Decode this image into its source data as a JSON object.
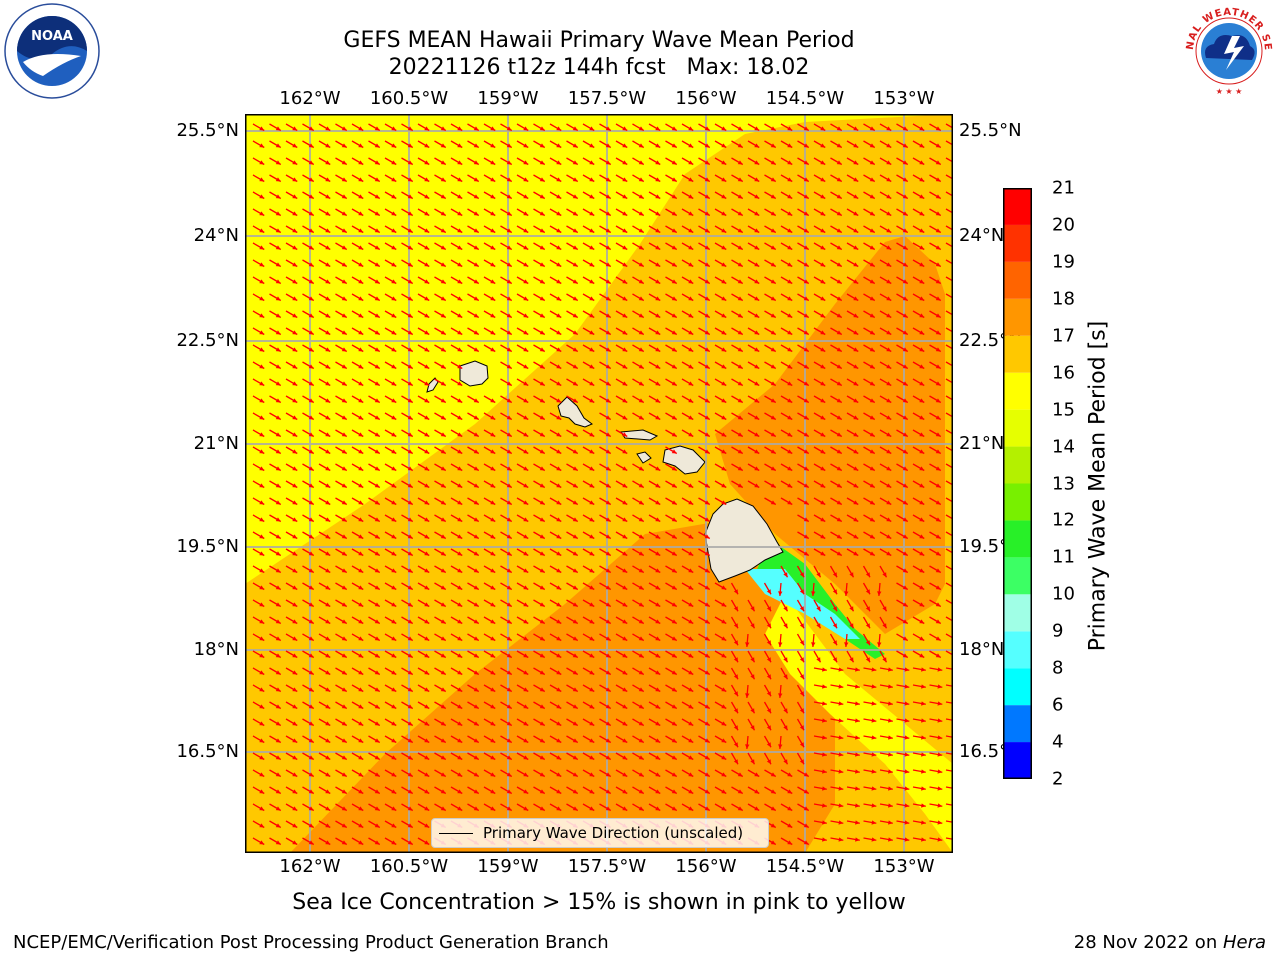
{
  "title": {
    "line1": "GEFS MEAN Hawaii Primary Wave Mean Period",
    "line2": "20221126 t12z 144h fcst   Max: 18.02"
  },
  "logos": {
    "left": "noaa-logo",
    "left_text": "NOAA",
    "left_ring_text": "NATIONAL OCEANIC AND ATMOSPHERIC ADMINISTRATION · U.S. DEPARTMENT OF COMMERCE",
    "right": "nws-logo",
    "right_ring_text": "NATIONAL WEATHER SERVICE"
  },
  "map": {
    "lon_ticks": [
      "162°W",
      "160.5°W",
      "159°W",
      "157.5°W",
      "156°W",
      "154.5°W",
      "153°W"
    ],
    "lat_ticks": [
      "25.5°N",
      "24°N",
      "22.5°N",
      "21°N",
      "19.5°N",
      "18°N",
      "16.5°N"
    ],
    "lon_range": [
      -163.0,
      -152.3
    ],
    "lat_range": [
      15.2,
      25.8
    ],
    "legend": "Primary Wave Direction (unscaled)",
    "arrow_color": "#ff0000",
    "land_color": "#efe9d9",
    "grid": true
  },
  "colorbar": {
    "label": "Primary Wave Mean Period [s]",
    "ticks": [
      2,
      4,
      6,
      8,
      9,
      10,
      11,
      12,
      13,
      14,
      15,
      16,
      17,
      18,
      19,
      20,
      21
    ],
    "colors": [
      "#0000ff",
      "#0078ff",
      "#00ffff",
      "#55ffff",
      "#a0ffe6",
      "#3cff64",
      "#28f028",
      "#78f000",
      "#b4f000",
      "#e6ff00",
      "#ffff00",
      "#ffc800",
      "#ff9600",
      "#ff6400",
      "#ff3200",
      "#ff0000"
    ]
  },
  "caption": "Sea Ice Concentration > 15% is shown in pink to yellow",
  "footer": {
    "left": "NCEP/EMC/Verification Post Processing Product Generation Branch",
    "right_prefix": "28 Nov 2022 on ",
    "right_host": "Hera"
  }
}
